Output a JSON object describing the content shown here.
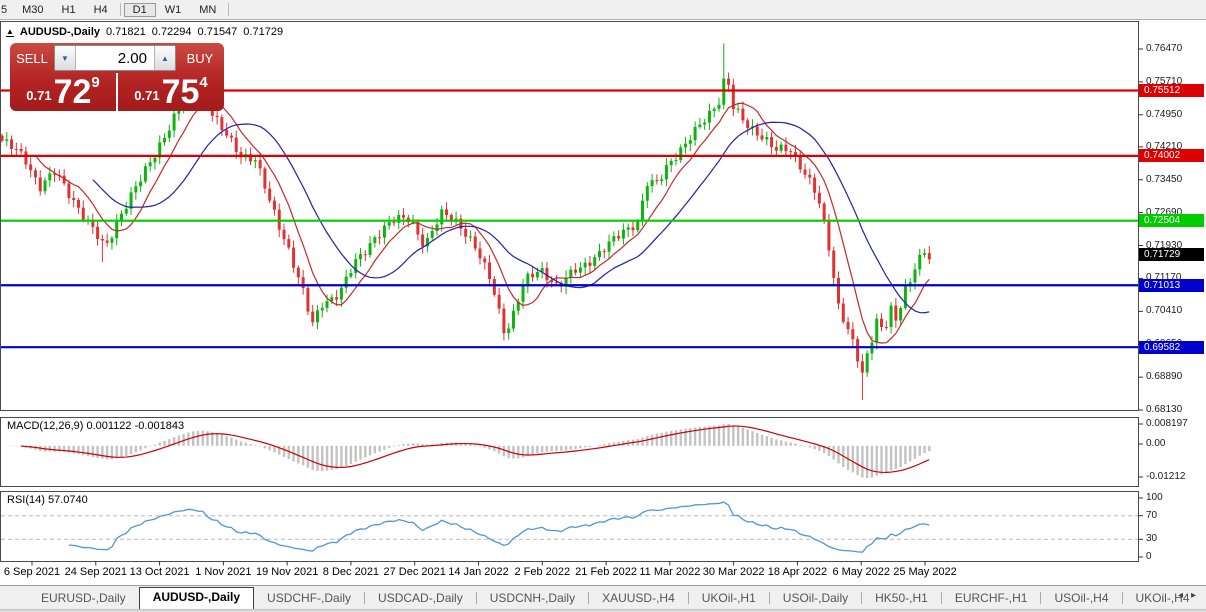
{
  "toolbar": {
    "timeframes": [
      "5",
      "M30",
      "H1",
      "H4",
      "D1",
      "W1",
      "MN"
    ],
    "active_timeframe": "D1",
    "separators_after": [
      3,
      6
    ]
  },
  "chart_header": {
    "collapse_arrow": "▲",
    "title": "AUDUSD-,Daily",
    "open": "0.71821",
    "high": "0.72294",
    "low": "0.71547",
    "close": "0.71729"
  },
  "trade_widget": {
    "sell_label": "SELL",
    "buy_label": "BUY",
    "volume": "2.00",
    "spinner_down": "▼",
    "spinner_up": "▲",
    "sell_price": {
      "prefix": "0.71",
      "big": "72",
      "sup": "9"
    },
    "buy_price": {
      "prefix": "0.71",
      "big": "75",
      "sup": "4"
    }
  },
  "indicator_panels": {
    "macd": {
      "label": "MACD(12,26,9) 0.001122 -0.001843",
      "axis_labels": [
        "0.008197",
        "0.00",
        "-0.01212"
      ]
    },
    "rsi": {
      "label": "RSI(14) 57.0740",
      "axis_labels": [
        "100",
        "70",
        "30",
        "0"
      ]
    }
  },
  "tabs": {
    "items": [
      "EURUSD-,Daily",
      "AUDUSD-,Daily",
      "USDCHF-,Daily",
      "USDCAD-,Daily",
      "USDCNH-,Daily",
      "XAUUSD-,H4",
      "UKOil-,H1",
      "USOil-,Daily",
      "HK50-,H1",
      "EURCHF-,H1",
      "USOil-,H4",
      "UKOil-,H4"
    ],
    "active_index": 1,
    "scroll_left": "◂",
    "scroll_right": "▸"
  },
  "chart_data": {
    "type": "candlestick",
    "symbol": "AUDUSD",
    "timeframe": "Daily",
    "ohlc_display": [
      0.71821,
      0.72294,
      0.71547,
      0.71729
    ],
    "x_dates": [
      "6 Sep 2021",
      "24 Sep 2021",
      "13 Oct 2021",
      "1 Nov 2021",
      "19 Nov 2021",
      "8 Dec 2021",
      "27 Dec 2021",
      "14 Jan 2022",
      "2 Feb 2022",
      "21 Feb 2022",
      "11 Mar 2022",
      "30 Mar 2022",
      "18 Apr 2022",
      "6 May 2022",
      "25 May 2022"
    ],
    "price_axis_ticks": [
      0.7647,
      0.7571,
      0.7495,
      0.7421,
      0.7345,
      0.7269,
      0.7193,
      0.7117,
      0.7041,
      0.6965,
      0.6889,
      0.6813
    ],
    "levels": [
      {
        "price": 0.75512,
        "color": "#dd0000"
      },
      {
        "price": 0.74002,
        "color": "#dd0000"
      },
      {
        "price": 0.72504,
        "color": "#00cc00"
      },
      {
        "price": 0.71013,
        "color": "#0000cc"
      },
      {
        "price": 0.69582,
        "color": "#0000cc"
      }
    ],
    "current_price": 0.71729,
    "current_price_bg": "#000000",
    "candle_count": 195,
    "price_anchors": [
      [
        2,
        0.7435
      ],
      [
        25,
        0.7395
      ],
      [
        40,
        0.733
      ],
      [
        55,
        0.736
      ],
      [
        75,
        0.7295
      ],
      [
        95,
        0.722
      ],
      [
        105,
        0.7185
      ],
      [
        120,
        0.7265
      ],
      [
        140,
        0.734
      ],
      [
        160,
        0.743
      ],
      [
        180,
        0.751
      ],
      [
        195,
        0.7555
      ],
      [
        205,
        0.753
      ],
      [
        220,
        0.7465
      ],
      [
        240,
        0.7405
      ],
      [
        255,
        0.7395
      ],
      [
        270,
        0.729
      ],
      [
        290,
        0.718
      ],
      [
        305,
        0.707
      ],
      [
        312,
        0.7005
      ],
      [
        322,
        0.706
      ],
      [
        340,
        0.7085
      ],
      [
        355,
        0.715
      ],
      [
        375,
        0.7215
      ],
      [
        395,
        0.725
      ],
      [
        410,
        0.726
      ],
      [
        425,
        0.719
      ],
      [
        443,
        0.727
      ],
      [
        458,
        0.725
      ],
      [
        475,
        0.7185
      ],
      [
        492,
        0.711
      ],
      [
        505,
        0.699
      ],
      [
        512,
        0.702
      ],
      [
        525,
        0.711
      ],
      [
        540,
        0.7145
      ],
      [
        558,
        0.709
      ],
      [
        575,
        0.714
      ],
      [
        600,
        0.717
      ],
      [
        622,
        0.723
      ],
      [
        638,
        0.7245
      ],
      [
        648,
        0.734
      ],
      [
        655,
        0.733
      ],
      [
        668,
        0.7385
      ],
      [
        685,
        0.742
      ],
      [
        705,
        0.749
      ],
      [
        720,
        0.753
      ],
      [
        726,
        0.759
      ],
      [
        733,
        0.751
      ],
      [
        745,
        0.748
      ],
      [
        760,
        0.745
      ],
      [
        775,
        0.741
      ],
      [
        790,
        0.742
      ],
      [
        805,
        0.736
      ],
      [
        818,
        0.73
      ],
      [
        830,
        0.718
      ],
      [
        838,
        0.706
      ],
      [
        848,
        0.7
      ],
      [
        855,
        0.695
      ],
      [
        862,
        0.689
      ],
      [
        870,
        0.696
      ],
      [
        877,
        0.703
      ],
      [
        884,
        0.699
      ],
      [
        890,
        0.706
      ],
      [
        897,
        0.7
      ],
      [
        903,
        0.7085
      ],
      [
        910,
        0.71
      ],
      [
        916,
        0.716
      ],
      [
        922,
        0.718
      ],
      [
        928,
        0.7173
      ]
    ],
    "wick_overrides": [
      {
        "i": 21,
        "low": 0.7155
      },
      {
        "i": 40,
        "high": 0.76
      },
      {
        "i": 151,
        "high": 0.766
      },
      {
        "i": 180,
        "low": 0.6836
      }
    ],
    "ma_fast_period": 8,
    "ma_slow_period": 20,
    "macd_params": [
      12,
      26,
      9
    ],
    "macd_display": [
      0.001122,
      -0.001843
    ],
    "macd_axis": [
      0.008197,
      0.0,
      -0.01212
    ],
    "rsi_period": 14,
    "rsi_value": 57.074,
    "rsi_guides": [
      70,
      30
    ],
    "colors": {
      "bull": "#0fb30f",
      "bear": "#e03232",
      "ma_fast": "#c82828",
      "ma_slow": "#2020b0",
      "macd_hist": "#c3c3c3",
      "macd_signal": "#cc0000",
      "rsi_line": "#4f96d8",
      "level_label_green_bg": "#00cc00",
      "level_label_red_bg": "#dd0000",
      "level_label_blue_bg": "#0000cc"
    }
  }
}
